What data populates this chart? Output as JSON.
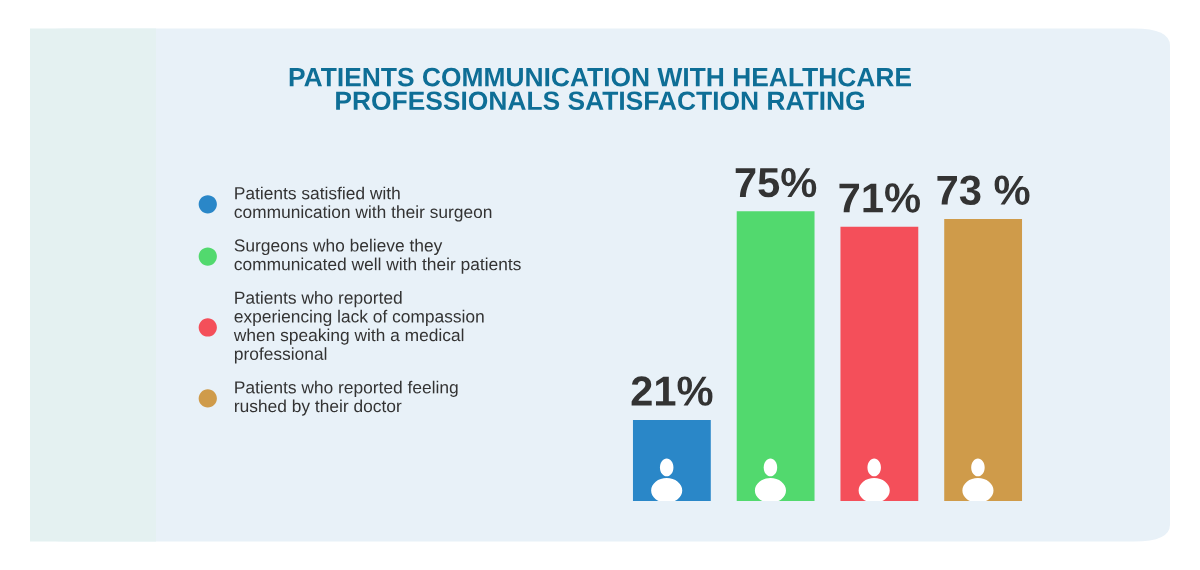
{
  "chart_data": {
    "type": "bar",
    "title": "PATIENTS COMMUNICATION WITH HEALTHCARE\nPROFESSIONALS SATISFACTION RATING",
    "categories": [
      null,
      null,
      null,
      null
    ],
    "stacked": true,
    "series": [
      {
        "name": "Patients satisfied with\ncommunication with their surgeon",
        "color": "#2a87c8",
        "values": [
          21,
          null,
          null,
          null
        ],
        "value_labels": [
          "21%",
          null,
          null,
          null
        ]
      },
      {
        "name": "Surgeons who believe they\ncommunicated well with their patients",
        "color": "#52d96e",
        "values": [
          null,
          75,
          null,
          null
        ],
        "value_labels": [
          null,
          "75%",
          null,
          null
        ]
      },
      {
        "name": "Patients who reported\nexperiencing lack of compassion\nwhen speaking with a medical\nprofessional",
        "color": "#f44f5a",
        "values": [
          null,
          null,
          71,
          null
        ],
        "value_labels": [
          null,
          null,
          "71%",
          null
        ]
      },
      {
        "name": "Patients who reported feeling\nrushed by their doctor",
        "color": "#cf9b4a",
        "values": [
          null,
          null,
          null,
          73
        ],
        "value_labels": [
          null,
          null,
          null,
          "73 %"
        ]
      }
    ],
    "legend": "left"
  }
}
